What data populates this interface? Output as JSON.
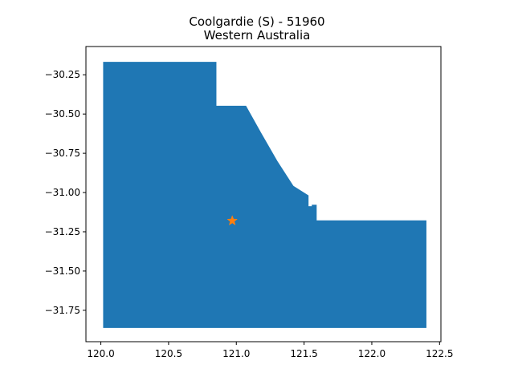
{
  "title": {
    "line1": "Coolgardie (S) - 51960",
    "line2": "Western Australia"
  },
  "colors": {
    "region": "#1f77b4",
    "marker": "#ff7f0e",
    "axes": "#000000",
    "background": "#ffffff"
  },
  "chart_data": {
    "type": "map",
    "xlim": [
      119.89,
      122.51
    ],
    "ylim": [
      -31.95,
      -30.07
    ],
    "x_ticks": [
      {
        "value": 120.0,
        "label": "120.0"
      },
      {
        "value": 120.5,
        "label": "120.5"
      },
      {
        "value": 121.0,
        "label": "121.0"
      },
      {
        "value": 121.5,
        "label": "121.5"
      },
      {
        "value": 122.0,
        "label": "122.0"
      },
      {
        "value": 122.5,
        "label": "122.5"
      }
    ],
    "y_ticks": [
      {
        "value": -30.25,
        "label": "−30.25"
      },
      {
        "value": -30.5,
        "label": "−30.50"
      },
      {
        "value": -30.75,
        "label": "−30.75"
      },
      {
        "value": -31.0,
        "label": "−31.00"
      },
      {
        "value": -31.25,
        "label": "−31.25"
      },
      {
        "value": -31.5,
        "label": "−31.50"
      },
      {
        "value": -31.75,
        "label": "−31.75"
      }
    ],
    "region_polygon": [
      [
        120.02,
        -30.17
      ],
      [
        120.85,
        -30.17
      ],
      [
        120.85,
        -30.45
      ],
      [
        121.07,
        -30.45
      ],
      [
        121.18,
        -30.62
      ],
      [
        121.3,
        -30.8
      ],
      [
        121.42,
        -30.96
      ],
      [
        121.53,
        -31.02
      ],
      [
        121.53,
        -31.09
      ],
      [
        121.56,
        -31.09
      ],
      [
        121.56,
        -31.08
      ],
      [
        121.59,
        -31.08
      ],
      [
        121.59,
        -31.18
      ],
      [
        122.4,
        -31.18
      ],
      [
        122.4,
        -31.86
      ],
      [
        120.02,
        -31.86
      ]
    ],
    "marker": {
      "x": 120.97,
      "y": -31.18,
      "symbol": "star"
    }
  }
}
